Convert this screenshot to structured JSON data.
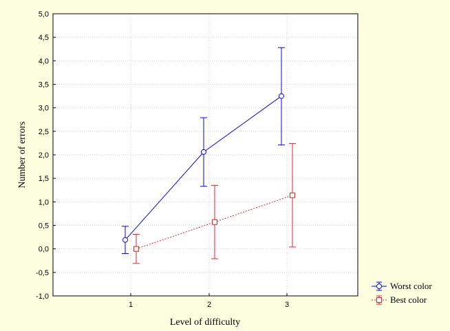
{
  "chart_data": {
    "type": "line",
    "xlabel": "Level of difficulty",
    "ylabel": "Number of errors",
    "categories": [
      "1",
      "2",
      "3"
    ],
    "ylim": [
      -1.0,
      5.0
    ],
    "yticks": [
      "-1,0",
      "-0,5",
      "0,0",
      "0,5",
      "1,0",
      "1,5",
      "2,0",
      "2,5",
      "3,0",
      "3,5",
      "4,0",
      "4,5",
      "5,0"
    ],
    "grid": true,
    "legend_position": "bottom-right",
    "series": [
      {
        "name": "Worst color",
        "color": "#0000ff",
        "line_style": "solid",
        "marker": "circle",
        "values": [
          0.19,
          2.06,
          3.25
        ],
        "err_low": [
          -0.1,
          1.33,
          2.21
        ],
        "err_high": [
          0.48,
          2.79,
          4.28
        ]
      },
      {
        "name": "Best color",
        "color": "#ee1c25",
        "line_style": "dotted",
        "marker": "square",
        "values": [
          0.0,
          0.57,
          1.14
        ],
        "err_low": [
          -0.31,
          -0.21,
          0.04
        ],
        "err_high": [
          0.31,
          1.35,
          2.24
        ]
      }
    ]
  }
}
